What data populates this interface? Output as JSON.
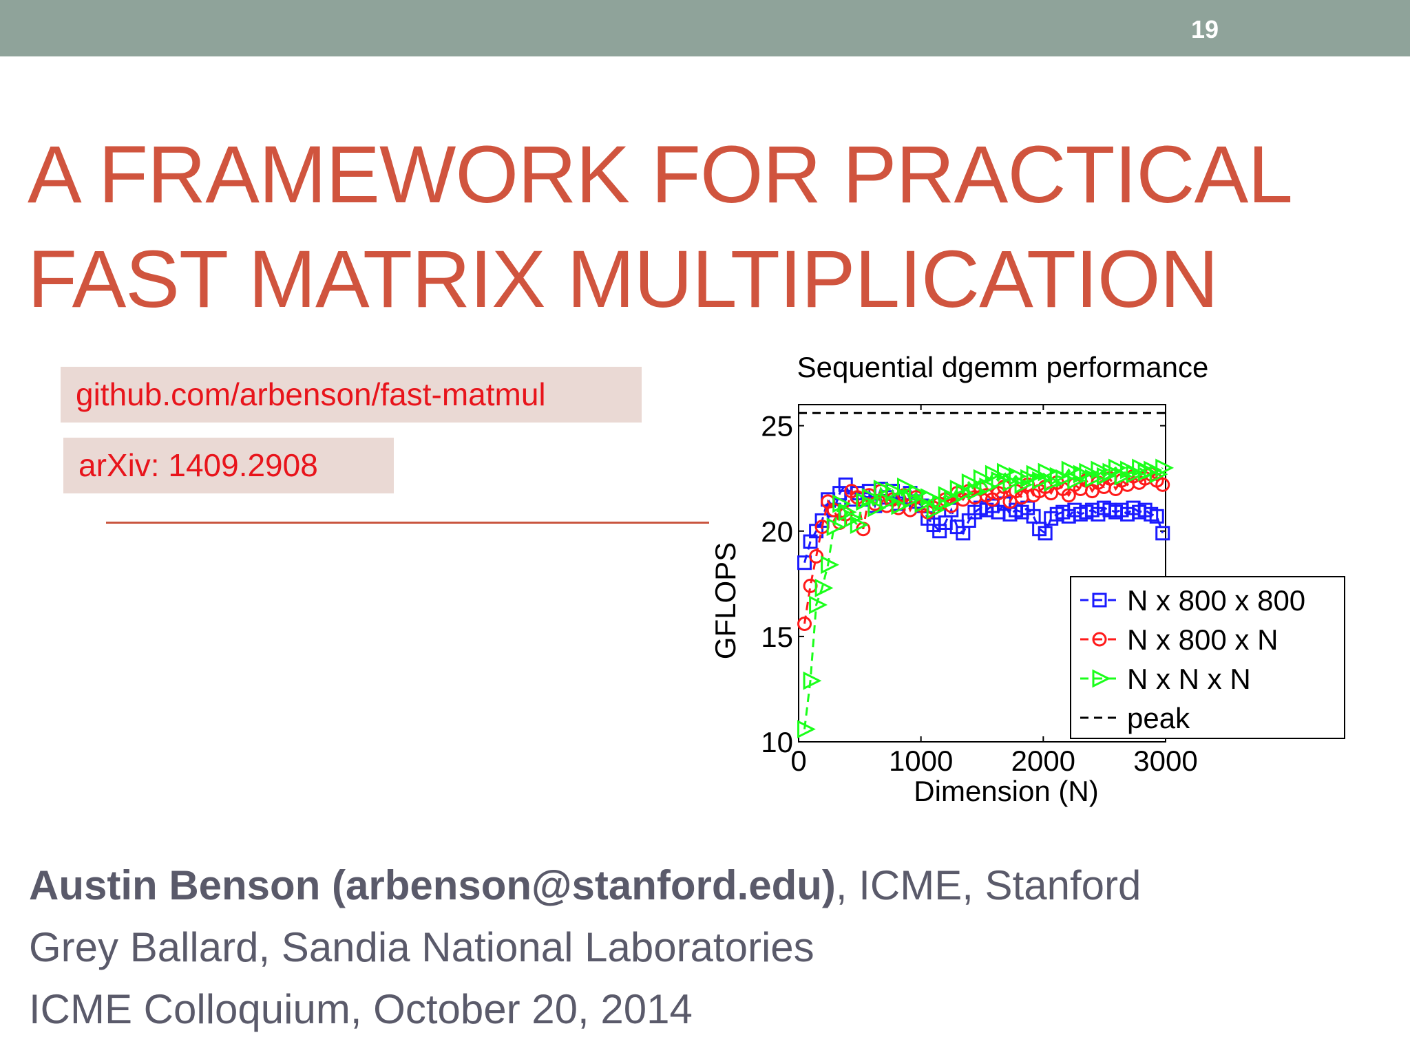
{
  "slide": {
    "number": "19",
    "title_lines": [
      "A FRAMEWORK FOR PRACTICAL",
      "FAST MATRIX MULTIPLICATION"
    ],
    "links": [
      "github.com/arbenson/fast-matmul",
      "arXiv: 1409.2908"
    ],
    "byline": {
      "line1_bold": "Austin Benson (arbenson@stanford.edu)",
      "line1_rest": ", ICME, Stanford",
      "line2": "Grey Ballard, Sandia National Laboratories",
      "line3": "ICME Colloquium, October 20, 2014"
    },
    "colors": {
      "title": "#d0543e",
      "link_text": "#e8141b",
      "link_bg": "#ead9d4",
      "topbar": "#8fa39a",
      "byline": "#5a5a6a"
    }
  },
  "chart_data": {
    "type": "line",
    "title": "Sequential dgemm performance",
    "xlabel": "Dimension (N)",
    "ylabel": "GFLOPS",
    "xlim": [
      0,
      3000
    ],
    "ylim": [
      10,
      26
    ],
    "xticks": [
      0,
      1000,
      2000,
      3000
    ],
    "yticks": [
      10,
      15,
      20,
      25
    ],
    "grid": false,
    "legend_position": "bottom-right",
    "series": [
      {
        "name": "N x 800 x 800",
        "color": "#1a1aff",
        "marker": "square",
        "linestyle": "dashed",
        "x": [
          48,
          96,
          144,
          192,
          240,
          288,
          336,
          384,
          432,
          480,
          528,
          576,
          624,
          672,
          720,
          768,
          816,
          864,
          912,
          960,
          1008,
          1056,
          1104,
          1152,
          1200,
          1248,
          1296,
          1344,
          1392,
          1440,
          1488,
          1536,
          1584,
          1632,
          1680,
          1728,
          1776,
          1824,
          1872,
          1920,
          1968,
          2016,
          2064,
          2112,
          2160,
          2208,
          2256,
          2304,
          2352,
          2400,
          2448,
          2496,
          2544,
          2592,
          2640,
          2688,
          2736,
          2784,
          2832,
          2880,
          2928,
          2976
        ],
        "y": [
          18.5,
          19.5,
          20.0,
          20.5,
          21.5,
          21.0,
          21.8,
          22.2,
          21.5,
          21.8,
          21.5,
          21.9,
          21.2,
          22.0,
          21.6,
          21.9,
          21.3,
          21.6,
          21.8,
          21.4,
          21.2,
          20.6,
          20.3,
          20.0,
          20.4,
          21.0,
          20.2,
          19.9,
          20.5,
          20.9,
          21.1,
          21.0,
          21.2,
          20.9,
          21.3,
          20.8,
          21.0,
          20.9,
          21.1,
          20.7,
          20.1,
          19.9,
          20.6,
          20.8,
          20.9,
          20.7,
          21.0,
          20.8,
          20.9,
          21.0,
          20.8,
          21.1,
          21.0,
          20.9,
          21.0,
          20.8,
          21.1,
          20.9,
          21.0,
          20.8,
          20.7,
          19.9
        ]
      },
      {
        "name": "N x 800 x N",
        "color": "#ff1a1a",
        "marker": "circle",
        "linestyle": "dashed",
        "x": [
          48,
          96,
          144,
          192,
          240,
          288,
          336,
          384,
          432,
          480,
          528,
          576,
          624,
          672,
          720,
          768,
          816,
          864,
          912,
          960,
          1008,
          1056,
          1104,
          1152,
          1200,
          1248,
          1296,
          1344,
          1392,
          1440,
          1488,
          1536,
          1584,
          1632,
          1680,
          1728,
          1776,
          1824,
          1872,
          1920,
          1968,
          2016,
          2064,
          2112,
          2160,
          2208,
          2256,
          2304,
          2352,
          2400,
          2448,
          2496,
          2544,
          2592,
          2640,
          2688,
          2736,
          2784,
          2832,
          2880,
          2928,
          2976
        ],
        "y": [
          15.6,
          17.4,
          18.8,
          20.2,
          21.4,
          21.0,
          20.4,
          20.8,
          21.9,
          21.6,
          20.1,
          21.7,
          21.3,
          21.9,
          21.2,
          21.5,
          21.1,
          21.7,
          21.0,
          21.6,
          21.2,
          20.9,
          21.1,
          21.3,
          21.5,
          21.2,
          21.8,
          21.5,
          21.9,
          21.6,
          22.0,
          21.7,
          21.5,
          21.8,
          22.1,
          21.4,
          21.9,
          21.6,
          22.2,
          21.7,
          21.9,
          22.1,
          21.8,
          22.3,
          22.0,
          21.7,
          22.2,
          22.0,
          22.4,
          21.9,
          22.3,
          22.1,
          22.5,
          22.0,
          22.4,
          22.2,
          22.6,
          22.3,
          22.5,
          22.7,
          22.4,
          22.2
        ]
      },
      {
        "name": "N x N x N",
        "color": "#1aff1a",
        "marker": "triangle-right",
        "linestyle": "dashed",
        "x": [
          48,
          96,
          144,
          192,
          240,
          288,
          336,
          384,
          432,
          480,
          528,
          576,
          624,
          672,
          720,
          768,
          816,
          864,
          912,
          960,
          1008,
          1056,
          1104,
          1152,
          1200,
          1248,
          1296,
          1344,
          1392,
          1440,
          1488,
          1536,
          1584,
          1632,
          1680,
          1728,
          1776,
          1824,
          1872,
          1920,
          1968,
          2016,
          2064,
          2112,
          2160,
          2208,
          2256,
          2304,
          2352,
          2400,
          2448,
          2496,
          2544,
          2592,
          2640,
          2688,
          2736,
          2784,
          2832,
          2880,
          2928,
          2976
        ],
        "y": [
          10.6,
          12.9,
          16.5,
          17.3,
          18.4,
          20.2,
          21.3,
          20.9,
          20.6,
          20.3,
          21.4,
          21.6,
          21.1,
          22.0,
          21.4,
          21.9,
          21.2,
          22.1,
          21.5,
          21.8,
          21.3,
          21.6,
          21.0,
          21.3,
          21.7,
          21.5,
          22.0,
          21.8,
          22.3,
          21.9,
          22.5,
          22.1,
          22.7,
          22.4,
          22.8,
          22.3,
          22.6,
          22.2,
          22.5,
          22.7,
          22.4,
          22.8,
          22.3,
          22.6,
          22.5,
          22.9,
          22.4,
          22.7,
          22.8,
          22.5,
          22.9,
          22.6,
          22.8,
          23.0,
          22.6,
          22.9,
          22.7,
          23.0,
          22.8,
          22.9,
          22.7,
          23.0
        ]
      },
      {
        "name": "peak",
        "color": "#000000",
        "marker": "none",
        "linestyle": "dashed",
        "x": [
          0,
          3000
        ],
        "y": [
          25.6,
          25.6
        ]
      }
    ]
  }
}
